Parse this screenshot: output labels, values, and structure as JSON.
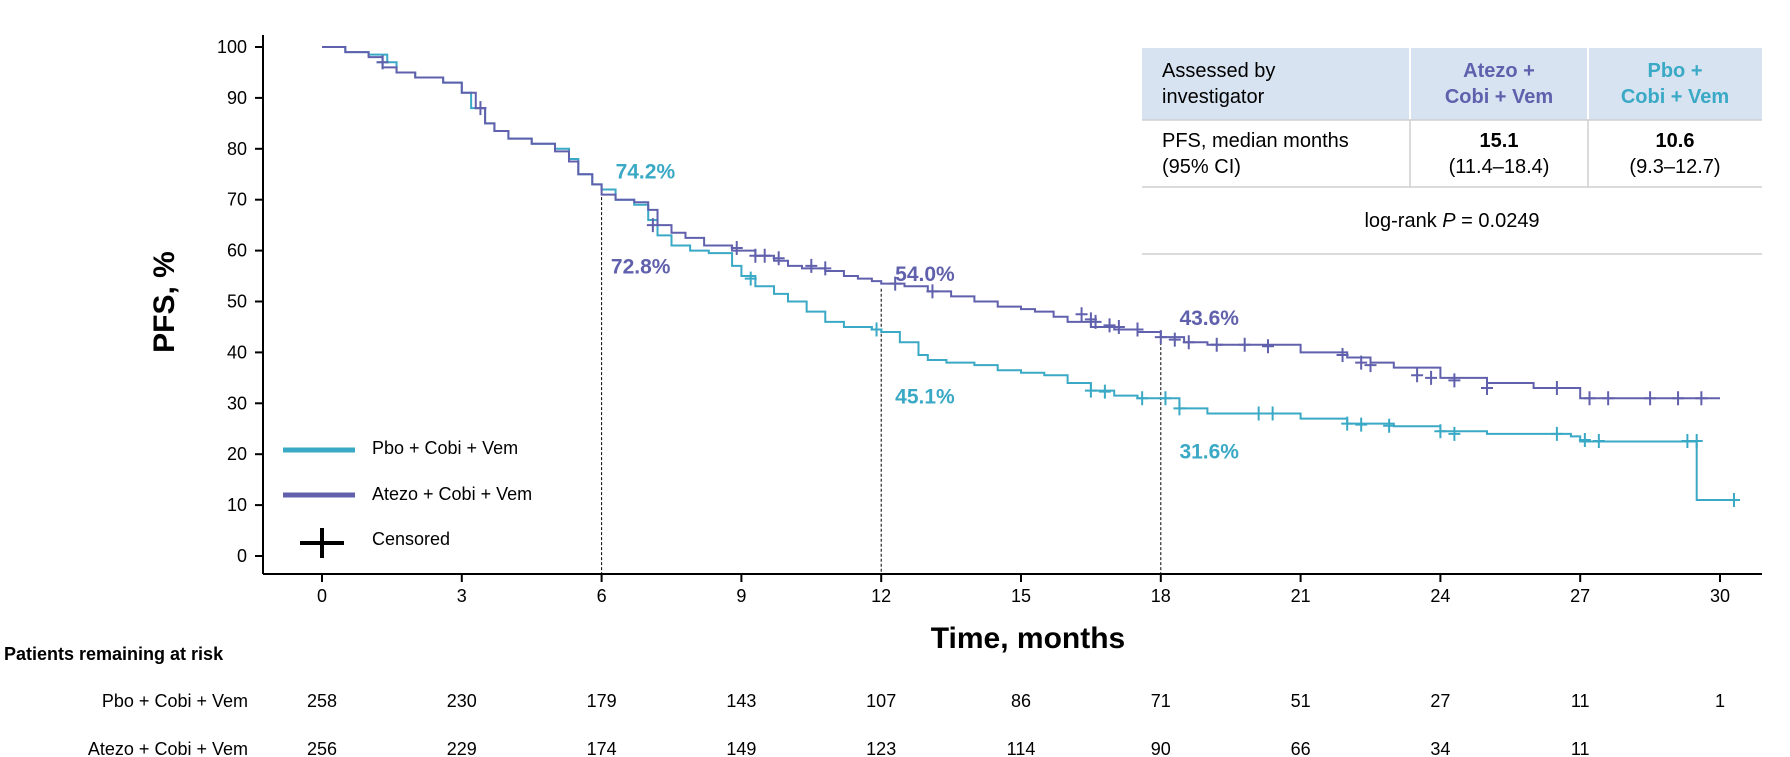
{
  "colors": {
    "pbo": "#3aa9c5",
    "atezo": "#6060ad",
    "table_header_bg": "#d7e3f1"
  },
  "chart_data": {
    "type": "line",
    "subtype": "kaplan-meier",
    "xlabel": "Time, months",
    "ylabel": "PFS, %",
    "xlim": [
      0,
      30
    ],
    "ylim": [
      0,
      100
    ],
    "x_ticks": [
      0,
      3,
      6,
      9,
      12,
      15,
      18,
      21,
      24,
      27,
      30
    ],
    "y_ticks": [
      0,
      10,
      20,
      30,
      40,
      50,
      60,
      70,
      80,
      90,
      100
    ],
    "grid": false,
    "legend_position": "bottom-left",
    "series": [
      {
        "name": "Pbo + Cobi + Vem",
        "color": "#3aa9c5",
        "x": [
          0,
          0.5,
          1.0,
          1.4,
          1.6,
          2.0,
          2.6,
          3.0,
          3.2,
          3.5,
          3.7,
          4.0,
          4.5,
          5.0,
          5.3,
          5.5,
          5.8,
          6.0,
          6.3,
          6.7,
          7.0,
          7.2,
          7.5,
          7.9,
          8.3,
          8.8,
          9.0,
          9.3,
          9.7,
          10.0,
          10.4,
          10.8,
          11.2,
          11.5,
          11.8,
          12.0,
          12.4,
          12.8,
          13.0,
          13.4,
          14.0,
          14.5,
          15.0,
          15.5,
          16.0,
          16.5,
          17.0,
          17.5,
          18.0,
          18.4,
          19.0,
          20.0,
          21.0,
          22.0,
          23.0,
          24.0,
          25.0,
          26.0,
          26.8,
          27.0,
          29.5,
          29.5,
          30.3
        ],
        "y": [
          100,
          99,
          98.5,
          97,
          95,
          94,
          93,
          91,
          88,
          85,
          83.5,
          82,
          81,
          80,
          78,
          75,
          73,
          72,
          70,
          69,
          66,
          63,
          61,
          60,
          59.5,
          57,
          55,
          53,
          51.5,
          50,
          48,
          46,
          45,
          45,
          44.5,
          44,
          42,
          39.5,
          38.5,
          38,
          37.5,
          36.5,
          36,
          35.5,
          34,
          32.5,
          31.5,
          31,
          31,
          29,
          28,
          28,
          27,
          26,
          25.5,
          24.5,
          24,
          24,
          23.5,
          22.5,
          22.5,
          11,
          11
        ],
        "censored": [
          [
            1.3,
            97
          ],
          [
            9.2,
            54.5
          ],
          [
            11.9,
            44.5
          ],
          [
            16.5,
            32.5
          ],
          [
            16.8,
            32.3
          ],
          [
            17.6,
            31
          ],
          [
            18.1,
            31
          ],
          [
            18.4,
            29
          ],
          [
            20.1,
            28
          ],
          [
            20.4,
            28
          ],
          [
            22.0,
            26
          ],
          [
            22.3,
            25.8
          ],
          [
            22.9,
            25.6
          ],
          [
            24.0,
            24.5
          ],
          [
            24.3,
            24
          ],
          [
            26.5,
            24
          ],
          [
            27.1,
            22.8
          ],
          [
            27.4,
            22.6
          ],
          [
            29.3,
            22.6
          ],
          [
            29.5,
            22.6
          ],
          [
            30.3,
            11
          ]
        ]
      },
      {
        "name": "Atezo + Cobi + Vem",
        "color": "#6060ad",
        "x": [
          0,
          0.5,
          1.0,
          1.3,
          1.6,
          2.0,
          2.6,
          3.0,
          3.3,
          3.5,
          3.7,
          4.0,
          4.5,
          5.0,
          5.3,
          5.5,
          5.8,
          6.0,
          6.3,
          6.7,
          7.0,
          7.2,
          7.5,
          7.8,
          8.2,
          8.8,
          9.3,
          9.7,
          10.0,
          10.3,
          10.8,
          11.2,
          11.5,
          11.8,
          12.0,
          12.5,
          13.0,
          13.5,
          14.0,
          14.5,
          15.0,
          15.3,
          15.7,
          16.0,
          16.5,
          17.0,
          17.5,
          18.0,
          18.5,
          19.0,
          20.0,
          21.0,
          22.0,
          22.5,
          23.0,
          24.0,
          25.0,
          26.0,
          26.8,
          27.0,
          30.0
        ],
        "y": [
          100,
          99,
          98,
          96,
          95,
          94,
          93,
          91,
          88,
          85,
          83.5,
          82,
          81,
          79.5,
          77.5,
          75,
          73,
          71,
          70,
          69.5,
          68,
          65,
          63.5,
          62.5,
          61,
          60,
          59,
          58,
          57,
          56.5,
          56,
          55,
          54.5,
          54,
          53.5,
          53,
          52,
          51,
          50,
          49,
          48.5,
          48,
          47,
          46,
          45,
          44.5,
          44,
          43,
          42,
          41.5,
          41.5,
          40,
          39,
          38,
          37,
          35,
          34,
          33,
          33,
          31,
          31
        ],
        "censored": [
          [
            1.3,
            97
          ],
          [
            3.4,
            88
          ],
          [
            7.1,
            65
          ],
          [
            8.9,
            60.5
          ],
          [
            9.3,
            59
          ],
          [
            9.5,
            59
          ],
          [
            9.8,
            58.5
          ],
          [
            10.5,
            57
          ],
          [
            10.8,
            56.5
          ],
          [
            12.3,
            53.5
          ],
          [
            13.1,
            52
          ],
          [
            16.3,
            47.5
          ],
          [
            16.5,
            46.5
          ],
          [
            16.6,
            46
          ],
          [
            16.9,
            45.3
          ],
          [
            17.1,
            45
          ],
          [
            17.5,
            44.5
          ],
          [
            18.0,
            43
          ],
          [
            18.3,
            42.5
          ],
          [
            18.6,
            42
          ],
          [
            19.2,
            41.5
          ],
          [
            19.8,
            41.5
          ],
          [
            20.3,
            41.2
          ],
          [
            21.9,
            39.5
          ],
          [
            22.3,
            38
          ],
          [
            22.5,
            37.5
          ],
          [
            23.5,
            35.5
          ],
          [
            23.8,
            35
          ],
          [
            24.3,
            34.5
          ],
          [
            25.0,
            33
          ],
          [
            26.5,
            33
          ],
          [
            27.2,
            31
          ],
          [
            27.6,
            31
          ],
          [
            28.5,
            31
          ],
          [
            29.1,
            31
          ],
          [
            29.6,
            31
          ]
        ]
      }
    ],
    "landmarks": [
      {
        "x": 6,
        "y_top": 71.5,
        "labels": [
          {
            "series": "pbo",
            "text": "74.2%",
            "x": 6.3,
            "y": 74.2
          },
          {
            "series": "atezo",
            "text": "72.8%",
            "x": 6.2,
            "y": 55.5
          }
        ]
      },
      {
        "x": 12,
        "y_top": 52.5,
        "labels": [
          {
            "series": "atezo",
            "text": "54.0%",
            "x": 12.3,
            "y": 54
          },
          {
            "series": "pbo",
            "text": "45.1%",
            "x": 12.3,
            "y": 30
          }
        ]
      },
      {
        "x": 18,
        "y_top": 43,
        "labels": [
          {
            "series": "atezo",
            "text": "43.6%",
            "x": 18.4,
            "y": 45.4
          },
          {
            "series": "pbo",
            "text": "31.6%",
            "x": 18.4,
            "y": 19.2
          }
        ]
      }
    ],
    "legend": {
      "items": [
        {
          "label": "Pbo + Cobi + Vem",
          "series": "pbo"
        },
        {
          "label": "Atezo + Cobi + Vem",
          "series": "atezo"
        },
        {
          "label": "Censored",
          "series": "censored"
        }
      ]
    }
  },
  "summary_table": {
    "header": {
      "c1_line1": "Assessed by",
      "c1_line2": "investigator",
      "c2_line1": "Atezo +",
      "c2_line2": "Cobi + Vem",
      "c3_line1": "Pbo +",
      "c3_line2": "Cobi + Vem"
    },
    "row1": {
      "label_line1": "PFS, median months",
      "label_line2": "(95% CI)",
      "atezo_median": "15.1",
      "atezo_ci": "(11.4–18.4)",
      "pbo_median": "10.6",
      "pbo_ci": "(9.3–12.7)"
    },
    "logrank": {
      "prefix": "log-rank ",
      "p": "P",
      "suffix": " = 0.0249"
    }
  },
  "risk_table": {
    "title": "Patients remaining at risk",
    "rows": [
      {
        "label": "Pbo + Cobi + Vem",
        "values": [
          "258",
          "230",
          "179",
          "143",
          "107",
          "86",
          "71",
          "51",
          "27",
          "11",
          "1"
        ]
      },
      {
        "label": "Atezo + Cobi + Vem",
        "values": [
          "256",
          "229",
          "174",
          "149",
          "123",
          "114",
          "90",
          "66",
          "34",
          "11",
          ""
        ]
      }
    ]
  }
}
